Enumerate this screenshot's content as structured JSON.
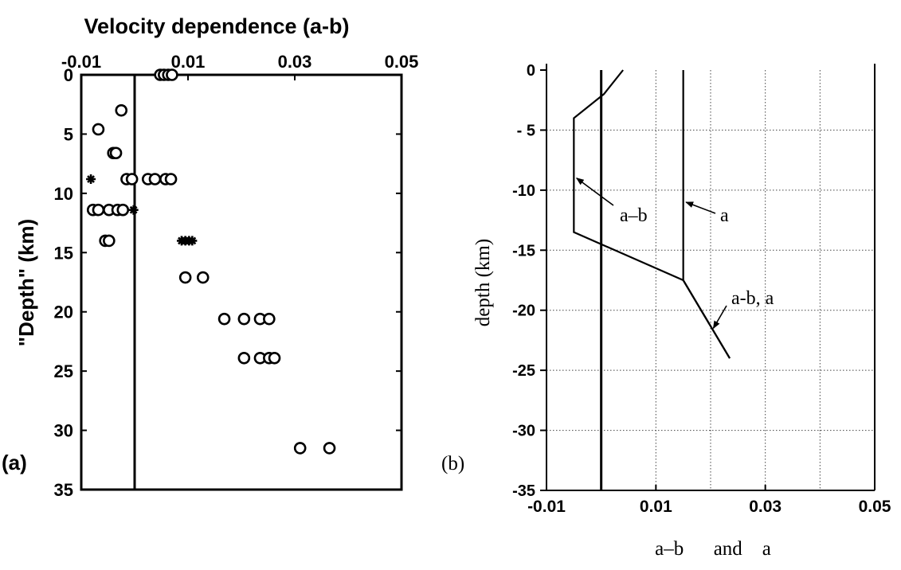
{
  "chart_data": [
    {
      "panel": "(a)",
      "type": "scatter",
      "title": "Velocity dependence (a-b)",
      "xlabel": "",
      "ylabel": "\"Depth\" (km)",
      "xlim": [
        -0.01,
        0.05
      ],
      "ylim": [
        0,
        35
      ],
      "y_inverted": true,
      "x_axis_position": "top",
      "x_ticks": [
        "-0.01",
        "0.01",
        "0.03",
        "0.05"
      ],
      "y_ticks": [
        "0",
        "5",
        "10",
        "15",
        "20",
        "25",
        "30",
        "35"
      ],
      "reference_line_x": 0.0,
      "series": [
        {
          "marker": "circle",
          "points": [
            [
              0.0048,
              0.0
            ],
            [
              0.0055,
              0.0
            ],
            [
              0.0063,
              0.0
            ],
            [
              0.007,
              0.0
            ],
            [
              -0.0025,
              3.0
            ],
            [
              -0.0068,
              4.6
            ],
            [
              -0.004,
              6.6
            ],
            [
              -0.0035,
              6.6
            ],
            [
              -0.0015,
              8.8
            ],
            [
              -0.0005,
              8.8
            ],
            [
              0.0025,
              8.8
            ],
            [
              0.0038,
              8.8
            ],
            [
              0.0058,
              8.8
            ],
            [
              0.0068,
              8.8
            ],
            [
              -0.0078,
              11.4
            ],
            [
              -0.0068,
              11.4
            ],
            [
              -0.0048,
              11.4
            ],
            [
              -0.0032,
              11.4
            ],
            [
              -0.0022,
              11.4
            ],
            [
              -0.0055,
              14.0
            ],
            [
              -0.0048,
              14.0
            ],
            [
              0.0095,
              17.1
            ],
            [
              0.0128,
              17.1
            ],
            [
              0.0168,
              20.6
            ],
            [
              0.0205,
              20.6
            ],
            [
              0.0235,
              20.6
            ],
            [
              0.0252,
              20.6
            ],
            [
              0.0205,
              23.9
            ],
            [
              0.0235,
              23.9
            ],
            [
              0.0252,
              23.9
            ],
            [
              0.0262,
              23.9
            ],
            [
              0.031,
              31.5
            ],
            [
              0.0365,
              31.5
            ]
          ]
        },
        {
          "marker": "filled-star",
          "points": [
            [
              -0.0082,
              8.8
            ],
            [
              -0.0002,
              11.4
            ],
            [
              0.0088,
              14.0
            ],
            [
              0.0095,
              14.0
            ],
            [
              0.0102,
              14.0
            ],
            [
              0.0108,
              14.0
            ]
          ]
        }
      ],
      "panel_label": "(a)"
    },
    {
      "panel": "(b)",
      "type": "line",
      "title": "",
      "xlabel": "a–b      and    a",
      "ylabel": "depth  (km)",
      "xlim": [
        -0.01,
        0.05
      ],
      "ylim": [
        -35,
        0
      ],
      "x_ticks": [
        "-0.01",
        "0.01",
        "0.03",
        "0.05"
      ],
      "y_ticks": [
        "0",
        "- 5",
        "-10",
        "-15",
        "-20",
        "-25",
        "-30",
        "-35"
      ],
      "grid": true,
      "reference_line_x": 0.0,
      "series": [
        {
          "name": "a-b",
          "x": [
            0.004,
            0.0005,
            -0.005,
            -0.005,
            0.015,
            0.0235
          ],
          "y": [
            0,
            -2.0,
            -4.0,
            -13.5,
            -17.5,
            -24.0
          ]
        },
        {
          "name": "a",
          "x": [
            0.015,
            0.015,
            0.0235
          ],
          "y": [
            0,
            -17.5,
            -24.0
          ]
        }
      ],
      "annotations": [
        {
          "text": "a–b",
          "points_to": [
            -0.0045,
            -9.0
          ]
        },
        {
          "text": "a",
          "points_to": [
            0.0155,
            -11.0
          ]
        },
        {
          "text": "a-b, a",
          "points_to": [
            0.0205,
            -21.5
          ]
        }
      ],
      "panel_label": "(b)"
    }
  ]
}
